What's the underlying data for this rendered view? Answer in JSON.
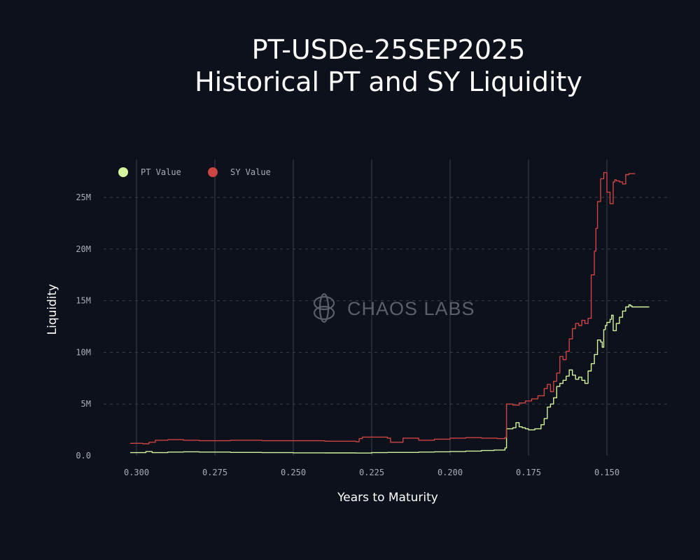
{
  "chart_data": {
    "type": "line",
    "title": [
      "PT-USDe-25SEP2025",
      "Historical PT and SY Liquidity"
    ],
    "xlabel": "Years to Maturity",
    "ylabel": "Liquidity",
    "xlim": [
      0.304,
      0.14
    ],
    "ylim": [
      0,
      28000000
    ],
    "x_reversed": true,
    "grid": {
      "x": "solid",
      "y": "dashed"
    },
    "legend": "top-left",
    "x_ticks": [
      {
        "value": 0.3,
        "label": "0.300"
      },
      {
        "value": 0.275,
        "label": "0.275"
      },
      {
        "value": 0.25,
        "label": "0.250"
      },
      {
        "value": 0.225,
        "label": "0.225"
      },
      {
        "value": 0.2,
        "label": "0.200"
      },
      {
        "value": 0.175,
        "label": "0.175"
      },
      {
        "value": 0.15,
        "label": "0.150"
      }
    ],
    "y_ticks": [
      {
        "value": 0,
        "label": "0.0"
      },
      {
        "value": 5000000,
        "label": "5M"
      },
      {
        "value": 10000000,
        "label": "10M"
      },
      {
        "value": 15000000,
        "label": "15M"
      },
      {
        "value": 20000000,
        "label": "20M"
      },
      {
        "value": 25000000,
        "label": "25M"
      }
    ],
    "series": [
      {
        "name": "PT Value",
        "color": "#d4f5a0",
        "x": [
          0.302,
          0.298,
          0.297,
          0.295,
          0.29,
          0.285,
          0.28,
          0.27,
          0.26,
          0.25,
          0.24,
          0.23,
          0.225,
          0.22,
          0.21,
          0.205,
          0.2,
          0.195,
          0.19,
          0.186,
          0.1825,
          0.182,
          0.18,
          0.179,
          0.178,
          0.177,
          0.176,
          0.175,
          0.173,
          0.171,
          0.17,
          0.169,
          0.168,
          0.167,
          0.166,
          0.165,
          0.164,
          0.163,
          0.162,
          0.161,
          0.16,
          0.159,
          0.158,
          0.157,
          0.156,
          0.155,
          0.154,
          0.153,
          0.152,
          0.1515,
          0.151,
          0.1505,
          0.15,
          0.149,
          0.1485,
          0.148,
          0.147,
          0.146,
          0.145,
          0.144,
          0.143,
          0.1425,
          0.142,
          0.141,
          0.14,
          0.139,
          0.138,
          0.137,
          0.1365
        ],
        "y": [
          300000,
          300000,
          400000,
          300000,
          350000,
          380000,
          350000,
          320000,
          300000,
          280000,
          270000,
          260000,
          300000,
          320000,
          350000,
          380000,
          400000,
          450000,
          500000,
          550000,
          750000,
          2600000,
          2700000,
          3200000,
          2800000,
          2700000,
          2600000,
          2500000,
          2600000,
          3000000,
          3600000,
          4700000,
          5000000,
          5600000,
          6700000,
          7000000,
          7300000,
          7700000,
          8300000,
          7800000,
          7400000,
          7600000,
          7300000,
          7000000,
          8200000,
          8900000,
          9800000,
          11200000,
          11000000,
          10500000,
          12200000,
          12600000,
          12900000,
          13200000,
          13600000,
          12100000,
          12800000,
          13400000,
          14000000,
          14400000,
          14600000,
          14500000,
          14400000,
          14400000,
          14400000,
          14400000,
          14400000,
          14400000,
          14400000
        ]
      },
      {
        "name": "SY Value",
        "color": "#cc4444",
        "x": [
          0.302,
          0.298,
          0.296,
          0.294,
          0.29,
          0.285,
          0.28,
          0.27,
          0.26,
          0.25,
          0.24,
          0.23,
          0.229,
          0.228,
          0.22,
          0.219,
          0.215,
          0.21,
          0.205,
          0.2,
          0.195,
          0.19,
          0.185,
          0.1825,
          0.182,
          0.18,
          0.178,
          0.176,
          0.174,
          0.172,
          0.17,
          0.169,
          0.168,
          0.167,
          0.166,
          0.165,
          0.164,
          0.163,
          0.162,
          0.161,
          0.16,
          0.159,
          0.158,
          0.157,
          0.156,
          0.155,
          0.154,
          0.1535,
          0.153,
          0.152,
          0.151,
          0.15,
          0.149,
          0.148,
          0.1475,
          0.147,
          0.146,
          0.145,
          0.144,
          0.143,
          0.142,
          0.141
        ],
        "y": [
          1200000,
          1150000,
          1300000,
          1500000,
          1550000,
          1500000,
          1450000,
          1500000,
          1450000,
          1450000,
          1400000,
          1350000,
          1650000,
          1800000,
          1700000,
          1300000,
          1700000,
          1500000,
          1600000,
          1700000,
          1750000,
          1700000,
          1650000,
          1750000,
          5000000,
          4900000,
          5100000,
          5300000,
          5500000,
          5800000,
          6500000,
          6900000,
          6200000,
          7200000,
          8000000,
          9600000,
          9300000,
          10100000,
          11300000,
          12300000,
          12800000,
          12600000,
          13100000,
          12800000,
          13300000,
          17500000,
          19800000,
          22000000,
          24600000,
          26800000,
          27400000,
          25500000,
          24400000,
          26500000,
          26700000,
          26600000,
          26500000,
          26300000,
          27200000,
          27300000,
          27300000,
          27300000
        ]
      }
    ]
  },
  "watermark": {
    "text": "CHAOS LABS",
    "icon": "chaos-labs-logo-icon",
    "color": "#5b5f69"
  },
  "colors": {
    "background": "#0d111b",
    "grid": "#3a3f4b",
    "tick_text": "#a8adb8",
    "title_text": "#ffffff"
  }
}
